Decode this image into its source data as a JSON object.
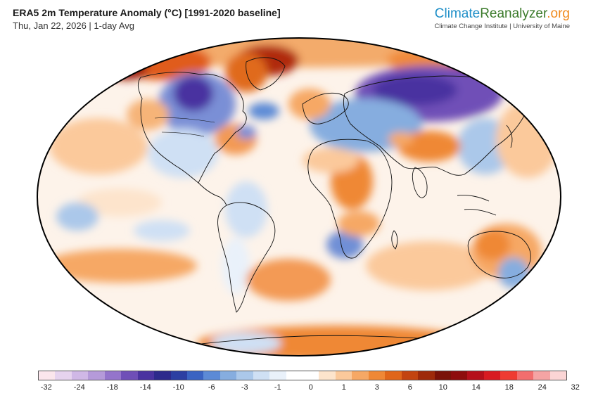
{
  "header": {
    "title": "ERA5 2m Temperature Anomaly (°C) [1991-2020 baseline]",
    "subtitle": "Thu, Jan 22, 2026 | 1-day Avg"
  },
  "brand": {
    "name_part1": "Climate",
    "name_part2": "Reanalyzer",
    "name_part3": ".org",
    "affiliation": "Climate Change Institute | University of Maine"
  },
  "map": {
    "projection": "Robinson / ellipse",
    "ocean_base_color": "#fdf3ea",
    "land_outline_color": "#111111"
  },
  "colorbar": {
    "colors": [
      "#fbe6ec",
      "#e6d3ee",
      "#d0b8e6",
      "#b59ad9",
      "#9474cb",
      "#6f4fb7",
      "#4a33a0",
      "#2d2a8c",
      "#2c3fa2",
      "#3a63c2",
      "#5c8ad6",
      "#86addf",
      "#abc8ea",
      "#cfe0f4",
      "#e9f1fa",
      "#ffffff",
      "#ffffff",
      "#fde4cc",
      "#fbc99b",
      "#f6a865",
      "#ef8836",
      "#e0661a",
      "#c34410",
      "#9e2a0a",
      "#7a1208",
      "#8e0d0d",
      "#b5101b",
      "#d81b22",
      "#ee3b32",
      "#f26e6e",
      "#f5a4a4",
      "#fbd5d5"
    ],
    "tick_labels": [
      "-32",
      "-24",
      "-18",
      "-14",
      "-10",
      "-6",
      "-3",
      "-1",
      "0",
      "1",
      "3",
      "6",
      "10",
      "14",
      "18",
      "24",
      "32"
    ]
  }
}
